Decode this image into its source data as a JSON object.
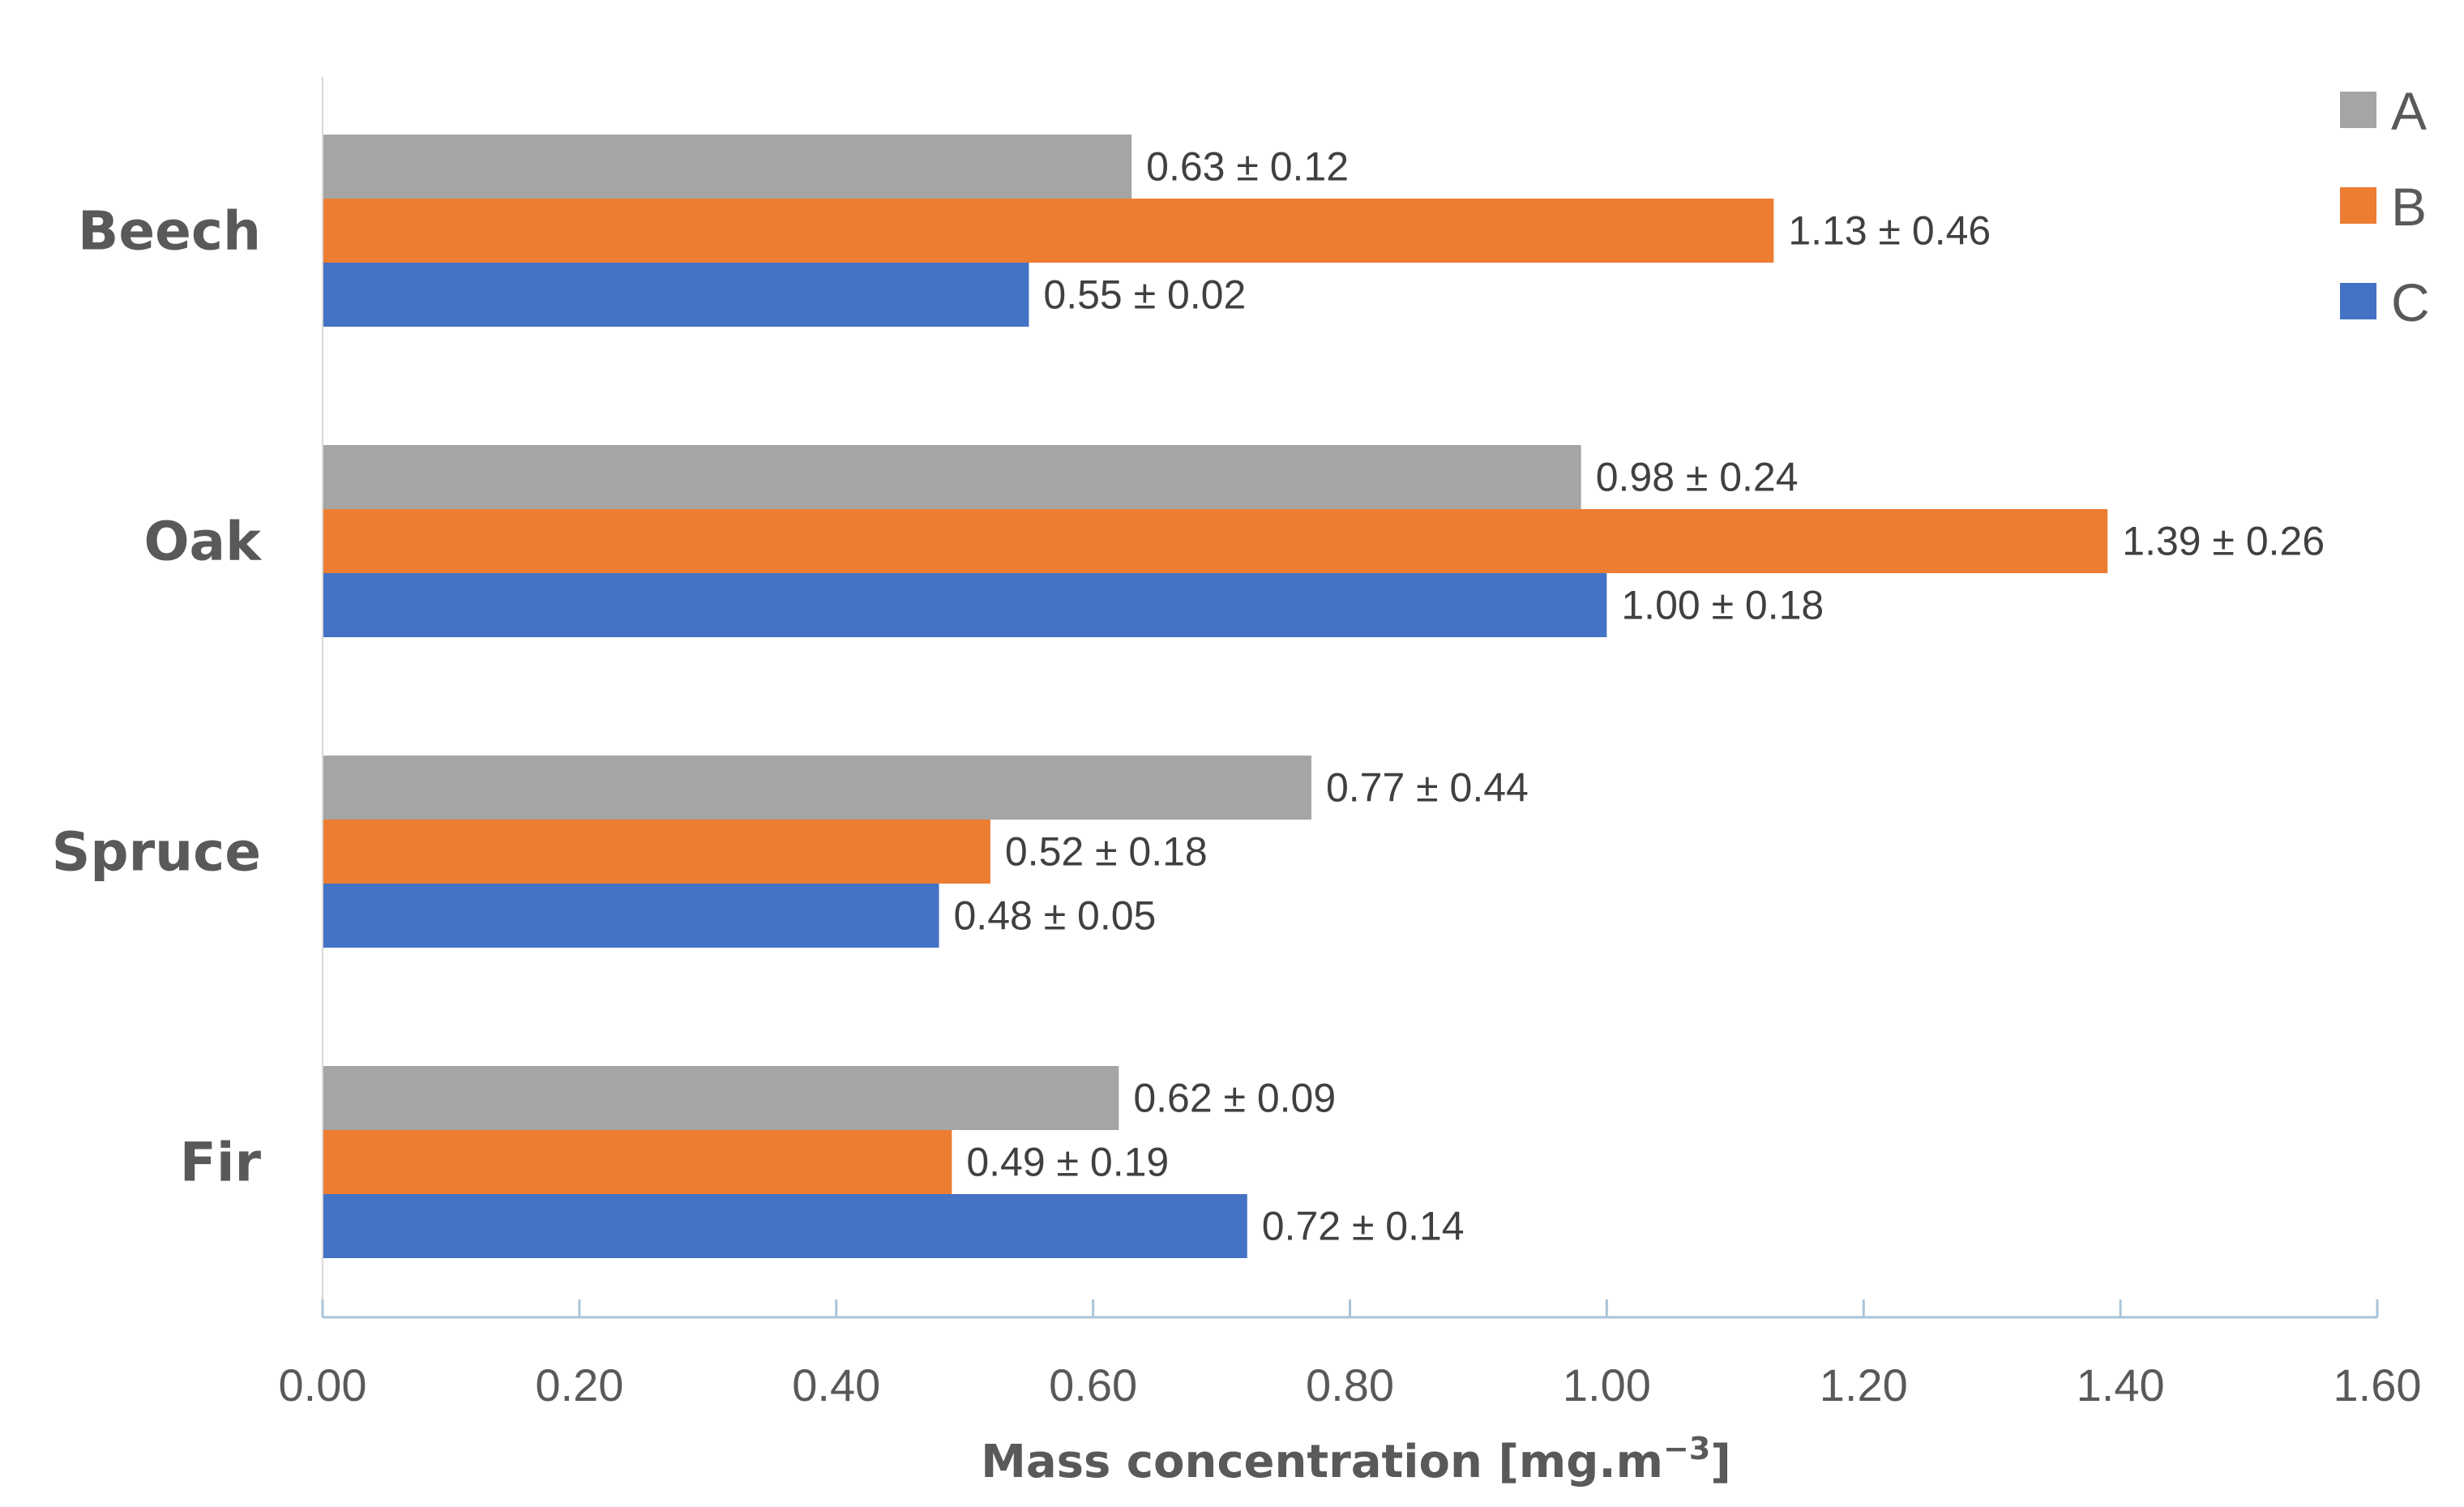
{
  "chart_data": {
    "type": "bar",
    "orientation": "horizontal",
    "categories": [
      "Beech",
      "Oak",
      "Spruce",
      "Fir"
    ],
    "series": [
      {
        "name": "A",
        "color": "#a5a5a5",
        "values": [
          0.63,
          0.98,
          0.77,
          0.62
        ],
        "labels": [
          "0.63 ± 0.12",
          "0.98 ± 0.24",
          "0.77 ± 0.44",
          "0.62 ± 0.09"
        ]
      },
      {
        "name": "B",
        "color": "#ed7d31",
        "values": [
          1.13,
          1.39,
          0.52,
          0.49
        ],
        "labels": [
          "1.13 ± 0.46",
          "1.39 ± 0.26",
          "0.52 ± 0.18",
          "0.49 ± 0.19"
        ]
      },
      {
        "name": "C",
        "color": "#4472c4",
        "values": [
          0.55,
          1.0,
          0.48,
          0.72
        ],
        "labels": [
          "0.55 ± 0.02",
          "1.00 ± 0.18",
          "0.48 ± 0.05",
          "0.72 ± 0.14"
        ]
      }
    ],
    "xlabel": "Mass concentration [mg.m",
    "xlabel_superscript": "−3",
    "xlabel_suffix": "]",
    "ylabel": "",
    "xlim": [
      0,
      1.6
    ],
    "xticks": [
      0,
      0.2,
      0.4,
      0.6,
      0.8,
      1.0,
      1.2,
      1.4,
      1.6
    ],
    "xtick_labels": [
      "0.00",
      "0.20",
      "0.40",
      "0.60",
      "0.80",
      "1.00",
      "1.20",
      "1.40",
      "1.60"
    ],
    "legend_position": "top-right",
    "grid": false
  }
}
